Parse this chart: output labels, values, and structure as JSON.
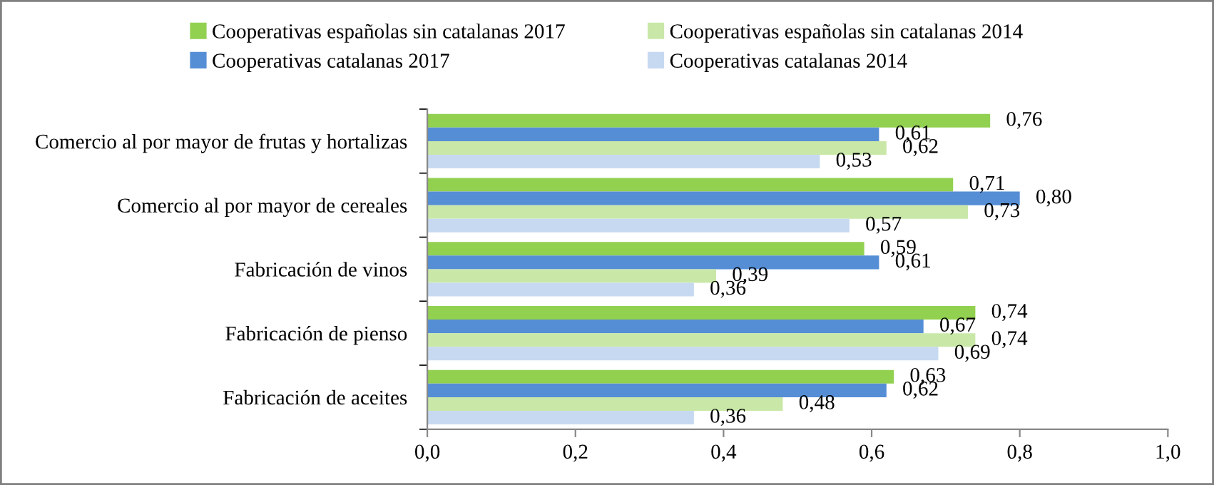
{
  "chart_data": {
    "type": "bar",
    "orientation": "horizontal",
    "categories": [
      "Comercio al por mayor de frutas y hortalizas",
      "Comercio al por mayor de cereales",
      "Fabricación de vinos",
      "Fabricación de pienso",
      "Fabricación de aceites"
    ],
    "series": [
      {
        "name": "Cooperativas españolas sin catalanas 2017",
        "color": "#92d050",
        "values": [
          0.76,
          0.71,
          0.59,
          0.74,
          0.63
        ],
        "value_labels": [
          "0,76",
          "0,71",
          "0,59",
          "0,74",
          "0,63"
        ]
      },
      {
        "name": "Cooperativas catalanas 2017",
        "color": "#558ed5",
        "values": [
          0.61,
          0.8,
          0.61,
          0.67,
          0.62
        ],
        "value_labels": [
          "0,61",
          "0,80",
          "0,61",
          "0,67",
          "0,62"
        ]
      },
      {
        "name": "Cooperativas españolas sin catalanas 2014",
        "color": "#c9e8a8",
        "values": [
          0.62,
          0.73,
          0.39,
          0.74,
          0.48
        ],
        "value_labels": [
          "0,62",
          "0,73",
          "0,39",
          "0,74",
          "0,48"
        ]
      },
      {
        "name": "Cooperativas catalanas 2014",
        "color": "#c6d9f1",
        "values": [
          0.53,
          0.57,
          0.36,
          0.69,
          0.36
        ],
        "value_labels": [
          "0,53",
          "0,57",
          "0,36",
          "0,69",
          "0,36"
        ]
      }
    ],
    "xlim": [
      0,
      1.0
    ],
    "xticks": [
      {
        "value": 0,
        "label": "0,0"
      },
      {
        "value": 0.2,
        "label": "0,2"
      },
      {
        "value": 0.4,
        "label": "0,4"
      },
      {
        "value": 0.6,
        "label": "0,6"
      },
      {
        "value": 0.8,
        "label": "0,8"
      },
      {
        "value": 1.0,
        "label": "1,0"
      }
    ],
    "grid": false,
    "legend": "top"
  }
}
